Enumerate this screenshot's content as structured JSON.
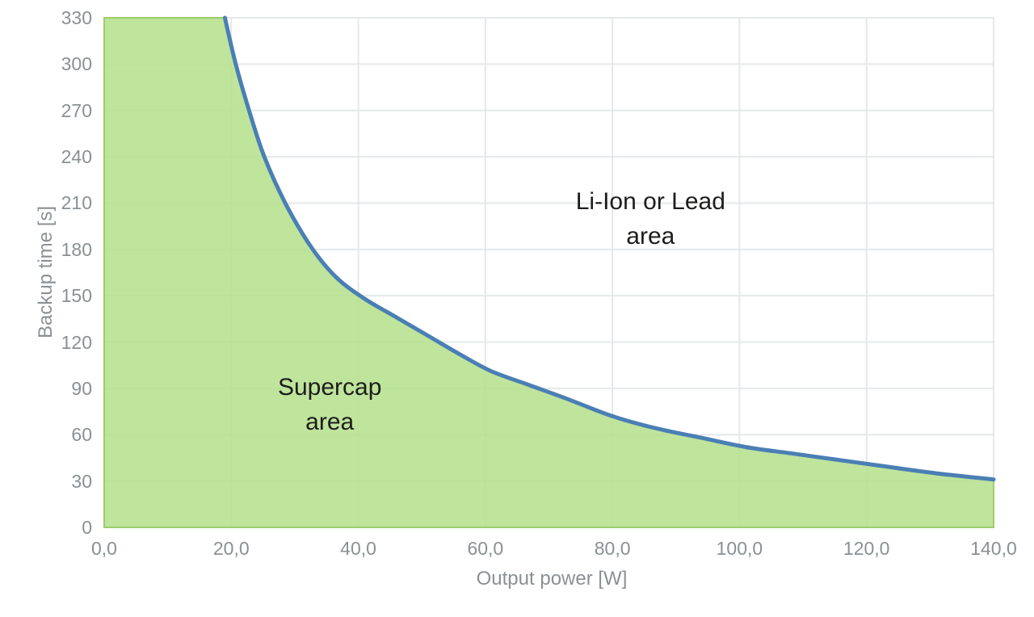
{
  "chart_data": {
    "type": "area",
    "title": "",
    "xlabel": "Output power [W]",
    "ylabel": "Backup time [s]",
    "xlim": [
      0,
      140
    ],
    "ylim": [
      0,
      330
    ],
    "grid": true,
    "legend_position": "none",
    "x_tick_labels": [
      "0,0",
      "20,0",
      "40,0",
      "60,0",
      "80,0",
      "100,0",
      "120,0",
      "140,0"
    ],
    "x_tick_values": [
      0,
      20,
      40,
      60,
      80,
      100,
      120,
      140
    ],
    "y_tick_labels": [
      "0",
      "30",
      "60",
      "90",
      "120",
      "150",
      "180",
      "210",
      "240",
      "270",
      "300",
      "330"
    ],
    "y_tick_values": [
      0,
      30,
      60,
      90,
      120,
      150,
      180,
      210,
      240,
      270,
      300,
      330
    ],
    "series": [
      {
        "name": "supercap-boundary-curve",
        "description": "Boundary between Supercap area (below, filled green) and Li-Ion or Lead area (above, white). Points are [output_power_W, backup_time_s].",
        "points": [
          [
            19,
            330
          ],
          [
            20.7,
            300
          ],
          [
            22.8,
            270
          ],
          [
            25.2,
            240
          ],
          [
            28.5,
            210
          ],
          [
            32.5,
            182
          ],
          [
            36.5,
            162
          ],
          [
            41,
            148
          ],
          [
            46,
            136
          ],
          [
            51,
            124
          ],
          [
            56,
            112
          ],
          [
            61,
            101
          ],
          [
            67,
            92
          ],
          [
            73,
            83
          ],
          [
            80,
            72
          ],
          [
            87,
            64
          ],
          [
            94,
            58
          ],
          [
            101,
            52
          ],
          [
            108,
            48
          ],
          [
            115,
            44
          ],
          [
            122,
            40
          ],
          [
            131,
            35
          ],
          [
            140,
            31
          ]
        ]
      }
    ],
    "annotations": [
      {
        "name": "supercap-area-label",
        "lines": [
          "Supercap",
          "area"
        ],
        "x_w": 35.5,
        "y_s": 79.5
      },
      {
        "name": "liion-area-label",
        "lines": [
          "Li-Ion or Lead",
          "area"
        ],
        "x_w": 86,
        "y_s": 200
      }
    ]
  },
  "colors": {
    "curve": "#4a7fb5",
    "area_fill": "#b6e08e",
    "area_border": "#9ccd6c",
    "gridline": "#e5e8ea",
    "tick_text": "#8b9093",
    "annotation_text": "#1d1d1b",
    "background": "#ffffff"
  }
}
